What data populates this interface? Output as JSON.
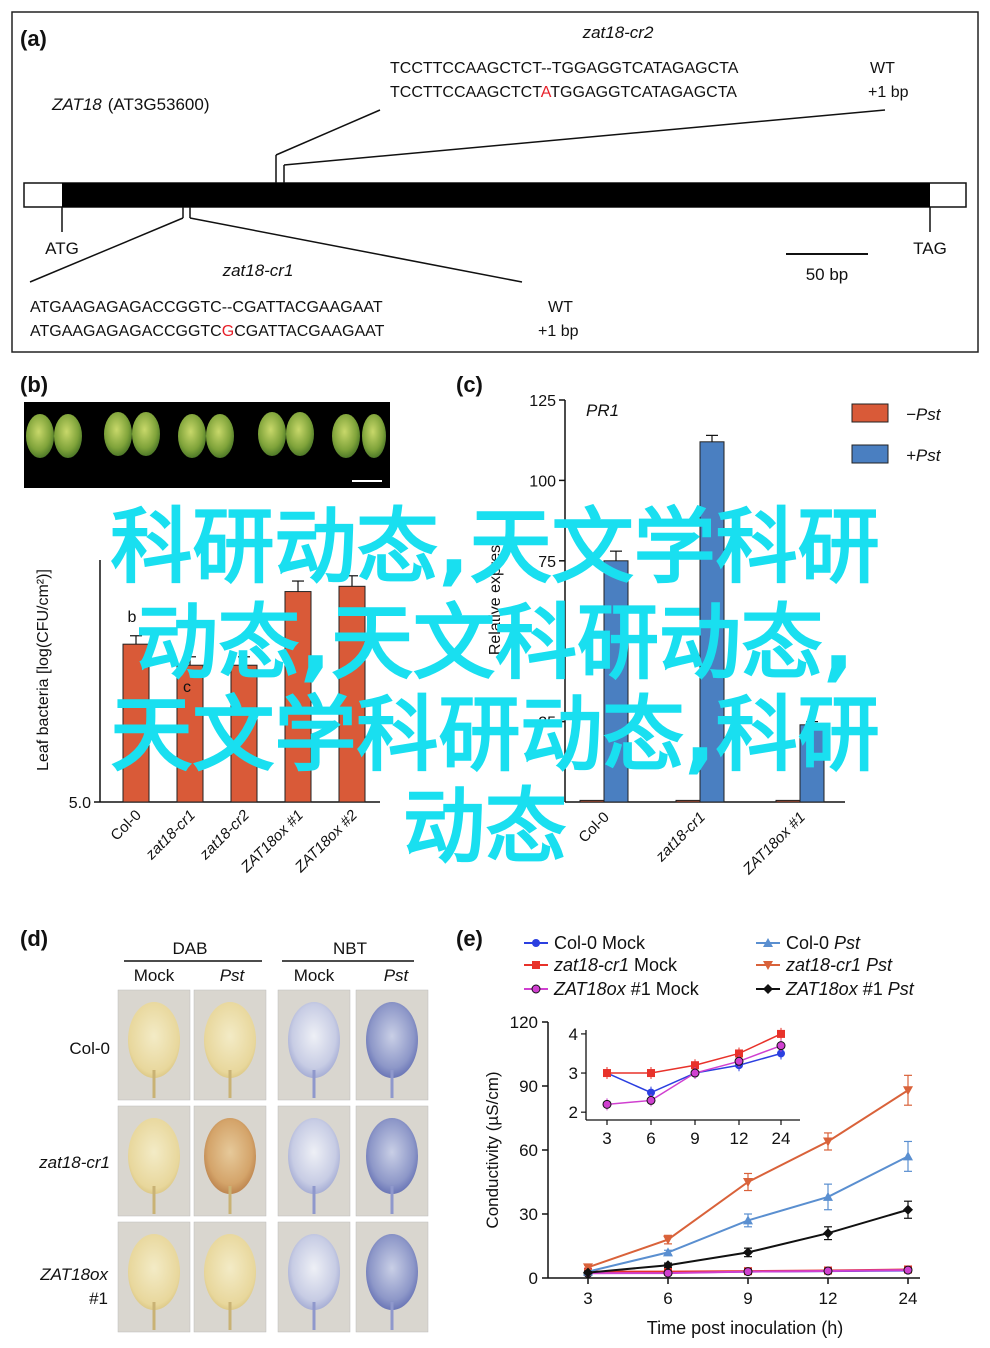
{
  "panel_a": {
    "label": "(a)",
    "gene_name": "ZAT18",
    "gene_id": "(AT3G53600)",
    "start": "ATG",
    "stop": "TAG",
    "scale_label": "50 bp",
    "allele2": {
      "name": "zat18-cr2",
      "wt_seq": "TCCTTCCAAGCTCT--TGGAGGTCATAGAGCTA",
      "mut_pre": "TCCTTCCAAGCTCT",
      "mut_ins": "A",
      "mut_post": "TGGAGGTCATAGAGCTA",
      "wt_label": "WT",
      "mut_label": "+1 bp"
    },
    "allele1": {
      "name": "zat18-cr1",
      "wt_seq": "ATGAAGAGAGACCGGTC--CGATTACGAAGAAT",
      "mut_pre": "ATGAAGAGAGACCGGTC",
      "mut_ins": "G",
      "mut_post": "CGATTACGAAGAAT",
      "wt_label": "WT",
      "mut_label": "+1 bp"
    },
    "insert_color": "#e8202a"
  },
  "panel_b": {
    "label": "(b)",
    "ylabel": "Leaf bacteria [log(CFU/cm²)]",
    "bar_color": "#d95a38",
    "chart_data": {
      "type": "bar",
      "categories": [
        "Col-0",
        "zat18-cr1",
        "zat18-cr2",
        "ZAT18ox #1",
        "ZAT18ox #2"
      ],
      "values": [
        6.5,
        6.3,
        6.3,
        7.0,
        7.05
      ],
      "errors": [
        0.08,
        0.08,
        0.08,
        0.1,
        0.1
      ],
      "ylim": [
        5.0,
        7.3
      ],
      "visible_ticks": [
        "5.0"
      ],
      "visible_letters": [
        "b",
        "c"
      ]
    }
  },
  "panel_c": {
    "label": "(c)",
    "title": "PR1",
    "ylabel_visible": "Relative expres",
    "chart_data": {
      "type": "bar",
      "categories": [
        "Col-0",
        "zat18-cr1",
        "ZAT18ox #1"
      ],
      "yticks": [
        "125",
        "100",
        "75",
        "25"
      ],
      "ylim": [
        0,
        125
      ],
      "series": [
        {
          "name": "−Pst",
          "color": "#d95a38",
          "values": [
            0.5,
            0.5,
            0.5
          ]
        },
        {
          "name": "+Pst",
          "color": "#4a7fc1",
          "values": [
            75,
            112,
            24
          ],
          "errors": [
            3,
            2,
            1
          ]
        }
      ],
      "legend": "top-right"
    }
  },
  "panel_d": {
    "label": "(d)",
    "groups": [
      "DAB",
      "NBT"
    ],
    "columns": [
      "Mock",
      "Pst",
      "Mock",
      "Pst"
    ],
    "rows": [
      "Col-0",
      "zat18-cr1",
      "ZAT18ox",
      "#1"
    ]
  },
  "panel_e": {
    "label": "(e)",
    "chart_data": {
      "type": "line",
      "x": [
        3,
        6,
        9,
        12,
        24
      ],
      "xticks": [
        "3",
        "6",
        "9",
        "12",
        "24"
      ],
      "yticks": [
        "0",
        "30",
        "60",
        "90",
        "120"
      ],
      "ylim": [
        0,
        120
      ],
      "xlabel": "Time post inoculation (h)",
      "ylabel": "Conductivity (µS/cm)",
      "series": [
        {
          "name": "Col-0 Mock",
          "color": "#2b3fe0",
          "marker": "circle",
          "values": [
            3,
            2.5,
            3,
            3.2,
            3.5
          ]
        },
        {
          "name": "zat18-cr1 Mock",
          "color": "#e8322a",
          "marker": "square",
          "values": [
            3,
            3,
            3.2,
            3.5,
            4
          ]
        },
        {
          "name": "ZAT18ox #1 Mock",
          "color": "#d040d0",
          "marker": "circle-open",
          "values": [
            2.2,
            2.3,
            3.0,
            3.3,
            3.7
          ]
        },
        {
          "name": "Col-0 Pst",
          "color": "#5a8fd0",
          "marker": "triangle",
          "values": [
            3,
            12,
            27,
            38,
            57
          ],
          "errors": [
            1,
            1,
            3,
            6,
            7
          ]
        },
        {
          "name": "zat18-cr1 Pst",
          "color": "#d9623a",
          "marker": "triangle-down",
          "values": [
            5,
            18,
            45,
            64,
            88
          ],
          "errors": [
            1,
            2,
            4,
            4,
            7
          ]
        },
        {
          "name": "ZAT18ox #1 Pst",
          "color": "#111111",
          "marker": "diamond",
          "values": [
            2.5,
            6,
            12,
            21,
            32
          ],
          "errors": [
            0.5,
            1,
            2,
            3,
            4
          ]
        }
      ],
      "inset": {
        "xticks": [
          "3",
          "6",
          "9",
          "12",
          "24"
        ],
        "yticks": [
          "2",
          "3",
          "4"
        ],
        "ylim": [
          1.8,
          4.1
        ]
      }
    }
  },
  "overlay_text": {
    "line1": "科研动态,天文学科研",
    "line2": "动态,天文科研动态,",
    "line3": "天文学科研动态,科研",
    "line4": "动态"
  }
}
